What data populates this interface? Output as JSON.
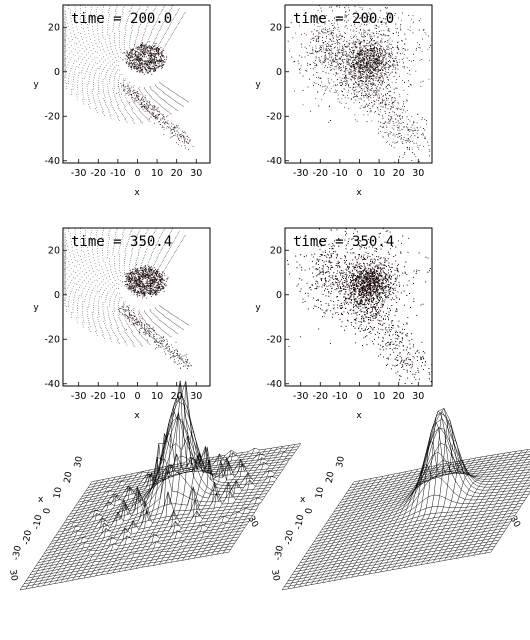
{
  "figure": {
    "panels": [
      {
        "id": "p00",
        "time_prefix": "time = ",
        "time": "200.0",
        "distribution": "spiral-grid",
        "density": "low",
        "x_label": "x",
        "y_label": "y"
      },
      {
        "id": "p01",
        "time_prefix": "time = ",
        "time": "200.0",
        "distribution": "scattered",
        "density": "medium",
        "x_label": "x",
        "y_label": "y"
      },
      {
        "id": "p10",
        "time_prefix": "time = ",
        "time": "350.4",
        "distribution": "spiral-grid",
        "density": "low",
        "x_label": "x",
        "y_label": "y"
      },
      {
        "id": "p11",
        "time_prefix": "time = ",
        "time": "350.4",
        "distribution": "scattered",
        "density": "high",
        "x_label": "x",
        "y_label": "y"
      }
    ],
    "x_ticks": [
      "-30",
      "-20",
      "-10",
      "0",
      "10",
      "20",
      "30"
    ],
    "y_ticks": [
      "20",
      "0",
      "-20",
      "-40"
    ],
    "x_tick_values": [
      -30,
      -20,
      -10,
      0,
      10,
      20,
      30
    ],
    "y_tick_values": [
      20,
      0,
      -20,
      -40
    ],
    "xlim": [
      -38,
      37
    ],
    "ylim": [
      -41,
      30
    ],
    "surfaces": [
      {
        "id": "s0",
        "style": "spiky",
        "axis_labels": [
          "30",
          "20",
          "10",
          "0",
          "-10",
          "-20",
          "-30"
        ],
        "axis_name": "x",
        "side_labels": [
          "30",
          "30"
        ]
      },
      {
        "id": "s1",
        "style": "smooth",
        "axis_labels": [
          "30",
          "20",
          "10",
          "0",
          "-10",
          "-20",
          "-30"
        ],
        "axis_name": "x",
        "side_labels": [
          "30",
          "30"
        ]
      }
    ]
  }
}
